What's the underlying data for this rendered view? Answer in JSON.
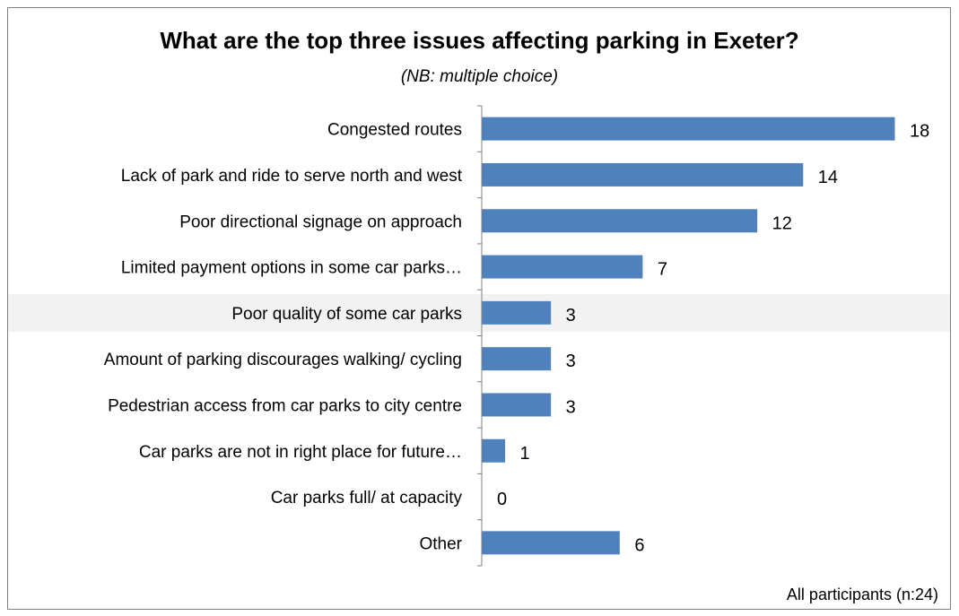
{
  "chart_data": {
    "type": "bar",
    "orientation": "horizontal",
    "title": "What are the top three issues affecting parking in Exeter?",
    "subtitle": "(NB: multiple choice)",
    "categories": [
      "Congested routes",
      "Lack of park and ride to serve north and west",
      "Poor directional signage on approach",
      "Limited payment options in some car parks…",
      "Poor quality of some car parks",
      "Amount of parking discourages walking/ cycling",
      "Pedestrian access from car parks to city centre",
      "Car parks are not in right place for future…",
      "Car parks full/ at capacity",
      "Other"
    ],
    "values": [
      18,
      14,
      12,
      7,
      3,
      3,
      3,
      1,
      0,
      6
    ],
    "xlim": [
      0,
      18
    ],
    "grid": false,
    "legend": "none",
    "bar_color": "#4f81bd",
    "footnote": "All participants (n:24)"
  }
}
